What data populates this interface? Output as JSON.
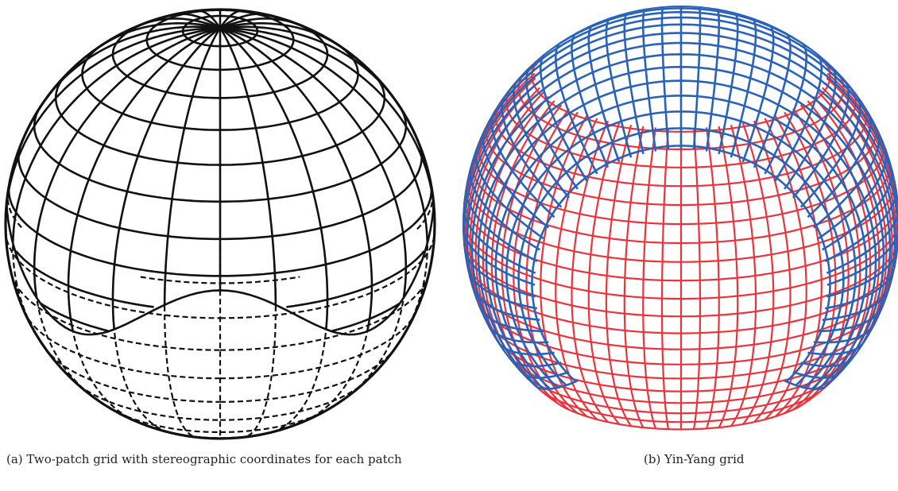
{
  "figure": {
    "panel_a": {
      "caption": "(a) Two-patch grid with stereographic coordinates for each patch",
      "line_color": "#111111",
      "upper_patch_style": "solid",
      "lower_patch_style": "dashed"
    },
    "panel_b": {
      "caption": "(b) Yin-Yang grid",
      "yin_color": "#e8343c",
      "yang_color": "#2a62b8"
    }
  }
}
